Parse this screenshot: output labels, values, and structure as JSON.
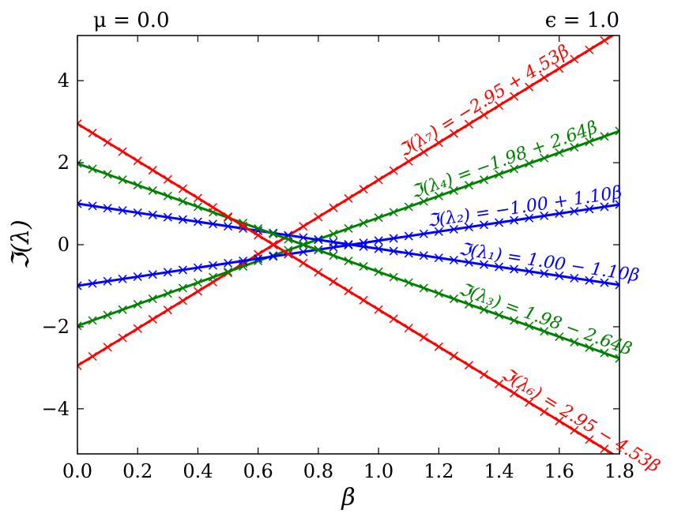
{
  "chart_data": {
    "type": "line",
    "xlabel": "β",
    "ylabel": "ℑ(λ)",
    "xlim": [
      0.0,
      1.8
    ],
    "ylim": [
      -5.1,
      5.1
    ],
    "x_ticks": [
      "0.0",
      "0.2",
      "0.4",
      "0.6",
      "0.8",
      "1.0",
      "1.2",
      "1.4",
      "1.6",
      "1.8"
    ],
    "y_ticks": [
      "−4",
      "−2",
      "0",
      "2",
      "4"
    ],
    "y_tick_values": [
      -4,
      -2,
      0,
      2,
      4
    ],
    "x_tick_values": [
      0.0,
      0.2,
      0.4,
      0.6,
      0.8,
      1.0,
      1.2,
      1.4,
      1.6,
      1.8
    ],
    "params": {
      "left": "μ = 0.0",
      "right": "ϵ = 1.0"
    },
    "grid": false,
    "legend": "none",
    "marker": "x",
    "x": [
      0.0,
      0.05,
      0.1,
      0.15,
      0.2,
      0.25,
      0.3,
      0.35,
      0.4,
      0.45,
      0.5,
      0.55,
      0.6,
      0.65,
      0.7,
      0.75,
      0.8,
      0.85,
      0.9,
      0.95,
      1.0,
      1.05,
      1.1,
      1.15,
      1.2,
      1.25,
      1.3,
      1.35,
      1.4,
      1.45,
      1.5,
      1.55,
      1.6,
      1.65,
      1.7,
      1.75,
      1.8
    ],
    "series": [
      {
        "label": "ℑ(λ₇) = −2.95 + 4.53β",
        "intercept": -2.95,
        "slope": 4.53,
        "color": "#ff0000",
        "label_at": 1.37
      },
      {
        "label": "ℑ(λ₄) = −1.98 + 2.64β",
        "intercept": -1.98,
        "slope": 2.64,
        "color": "#008000",
        "label_at": 1.43
      },
      {
        "label": "ℑ(λ₂) = −1.00 + 1.10β",
        "intercept": -1.0,
        "slope": 1.1,
        "color": "#0000ff",
        "label_at": 1.49
      },
      {
        "label": "ℑ(λ₁) = 1.00 − 1.10β",
        "intercept": 1.0,
        "slope": -1.1,
        "color": "#0000ff",
        "label_at": 1.56
      },
      {
        "label": "ℑ(λ₃) = 1.98 − 2.64β",
        "intercept": 1.98,
        "slope": -2.64,
        "color": "#008000",
        "label_at": 1.54
      },
      {
        "label": "ℑ(λ₆) = 2.95 − 4.53β",
        "intercept": 2.95,
        "slope": -4.53,
        "color": "#ff0000",
        "label_at": 1.65
      }
    ]
  }
}
